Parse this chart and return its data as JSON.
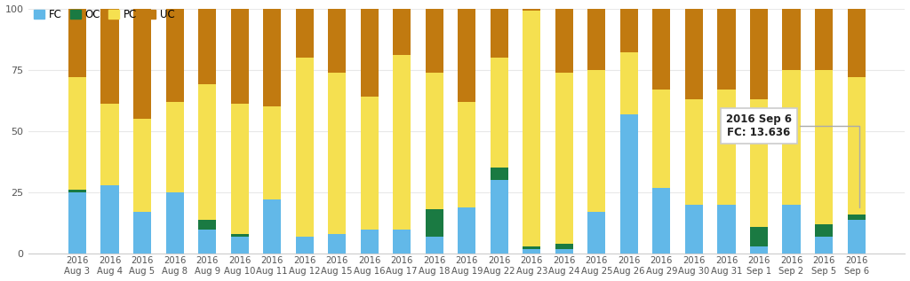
{
  "categories": [
    "2016\nAug 3",
    "2016\nAug 4",
    "2016\nAug 5",
    "2016\nAug 8",
    "2016\nAug 9",
    "2016\nAug 10",
    "2016\nAug 11",
    "2016\nAug 12",
    "2016\nAug 15",
    "2016\nAug 16",
    "2016\nAug 17",
    "2016\nAug 18",
    "2016\nAug 19",
    "2016\nAug 22",
    "2016\nAug 23",
    "2016\nAug 24",
    "2016\nAug 25",
    "2016\nAug 26",
    "2016\nAug 29",
    "2016\nAug 30",
    "2016\nAug 31",
    "2016\nSep 1",
    "2016\nSep 2",
    "2016\nSep 5",
    "2016\nSep 6"
  ],
  "FC": [
    25,
    28,
    17,
    25,
    10,
    7,
    22,
    7,
    8,
    10,
    10,
    7,
    19,
    30,
    2,
    2,
    17,
    57,
    27,
    20,
    20,
    3,
    20,
    7,
    14
  ],
  "OC": [
    1,
    0,
    0,
    0,
    4,
    1,
    0,
    0,
    0,
    0,
    0,
    11,
    0,
    5,
    1,
    2,
    0,
    0,
    0,
    0,
    0,
    8,
    0,
    5,
    2
  ],
  "PC": [
    46,
    33,
    38,
    37,
    55,
    53,
    38,
    73,
    66,
    54,
    71,
    56,
    43,
    45,
    96,
    70,
    58,
    25,
    40,
    43,
    47,
    52,
    55,
    63,
    56
  ],
  "UC": [
    28,
    39,
    45,
    38,
    31,
    39,
    40,
    20,
    26,
    36,
    19,
    26,
    38,
    20,
    1,
    26,
    25,
    18,
    33,
    37,
    33,
    37,
    25,
    25,
    28
  ],
  "FC_color": "#62B8E8",
  "OC_color": "#1A7A42",
  "PC_color": "#F5E050",
  "UC_color": "#C17A10",
  "background_color": "#ffffff",
  "grid_color": "#e8e8e8",
  "ylim": [
    0,
    100
  ],
  "yticks": [
    0,
    25,
    50,
    75,
    100
  ],
  "legend_labels": [
    "FC",
    "OC",
    "PC",
    "UC"
  ],
  "bar_width": 0.55,
  "tooltip_text": "2016 Sep 6\nFC: 13.636"
}
